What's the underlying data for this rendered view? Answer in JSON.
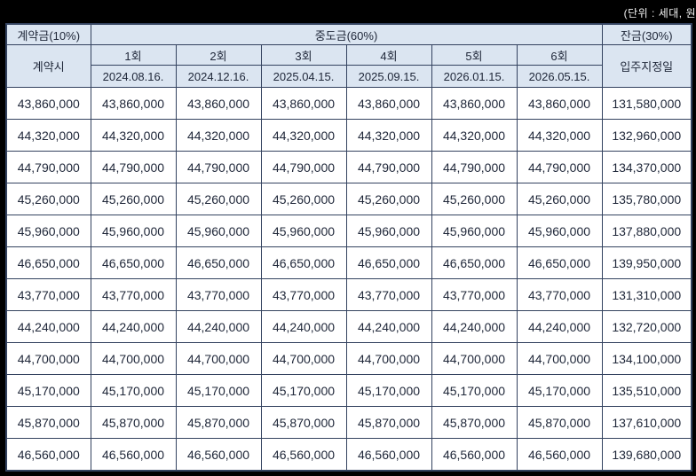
{
  "unit_note": "(단위 : 세대, 원",
  "table": {
    "header": {
      "contract": "계약금(10%)",
      "contract_sub": "계약시",
      "interim": "중도금(60%)",
      "balance": "잔금(30%)",
      "balance_sub": "입주지정일",
      "rounds": [
        "1회",
        "2회",
        "3회",
        "4회",
        "5회",
        "6회"
      ],
      "dates": [
        "2024.08.16.",
        "2024.12.16.",
        "2025.04.15.",
        "2025.09.15.",
        "2026.01.15.",
        "2026.05.15."
      ]
    },
    "rows": [
      [
        "43,860,000",
        "43,860,000",
        "43,860,000",
        "43,860,000",
        "43,860,000",
        "43,860,000",
        "43,860,000",
        "131,580,000"
      ],
      [
        "44,320,000",
        "44,320,000",
        "44,320,000",
        "44,320,000",
        "44,320,000",
        "44,320,000",
        "44,320,000",
        "132,960,000"
      ],
      [
        "44,790,000",
        "44,790,000",
        "44,790,000",
        "44,790,000",
        "44,790,000",
        "44,790,000",
        "44,790,000",
        "134,370,000"
      ],
      [
        "45,260,000",
        "45,260,000",
        "45,260,000",
        "45,260,000",
        "45,260,000",
        "45,260,000",
        "45,260,000",
        "135,780,000"
      ],
      [
        "45,960,000",
        "45,960,000",
        "45,960,000",
        "45,960,000",
        "45,960,000",
        "45,960,000",
        "45,960,000",
        "137,880,000"
      ],
      [
        "46,650,000",
        "46,650,000",
        "46,650,000",
        "46,650,000",
        "46,650,000",
        "46,650,000",
        "46,650,000",
        "139,950,000"
      ],
      [
        "43,770,000",
        "43,770,000",
        "43,770,000",
        "43,770,000",
        "43,770,000",
        "43,770,000",
        "43,770,000",
        "131,310,000"
      ],
      [
        "44,240,000",
        "44,240,000",
        "44,240,000",
        "44,240,000",
        "44,240,000",
        "44,240,000",
        "44,240,000",
        "132,720,000"
      ],
      [
        "44,700,000",
        "44,700,000",
        "44,700,000",
        "44,700,000",
        "44,700,000",
        "44,700,000",
        "44,700,000",
        "134,100,000"
      ],
      [
        "45,170,000",
        "45,170,000",
        "45,170,000",
        "45,170,000",
        "45,170,000",
        "45,170,000",
        "45,170,000",
        "135,510,000"
      ],
      [
        "45,870,000",
        "45,870,000",
        "45,870,000",
        "45,870,000",
        "45,870,000",
        "45,870,000",
        "45,870,000",
        "137,610,000"
      ],
      [
        "46,560,000",
        "46,560,000",
        "46,560,000",
        "46,560,000",
        "46,560,000",
        "46,560,000",
        "46,560,000",
        "139,680,000"
      ]
    ]
  },
  "colors": {
    "background": "#000000",
    "header_bg": "#dbe5f1",
    "cell_bg": "#ffffff",
    "border": "#33425f",
    "text": "#20283a",
    "note_text": "#f2f2f2"
  }
}
